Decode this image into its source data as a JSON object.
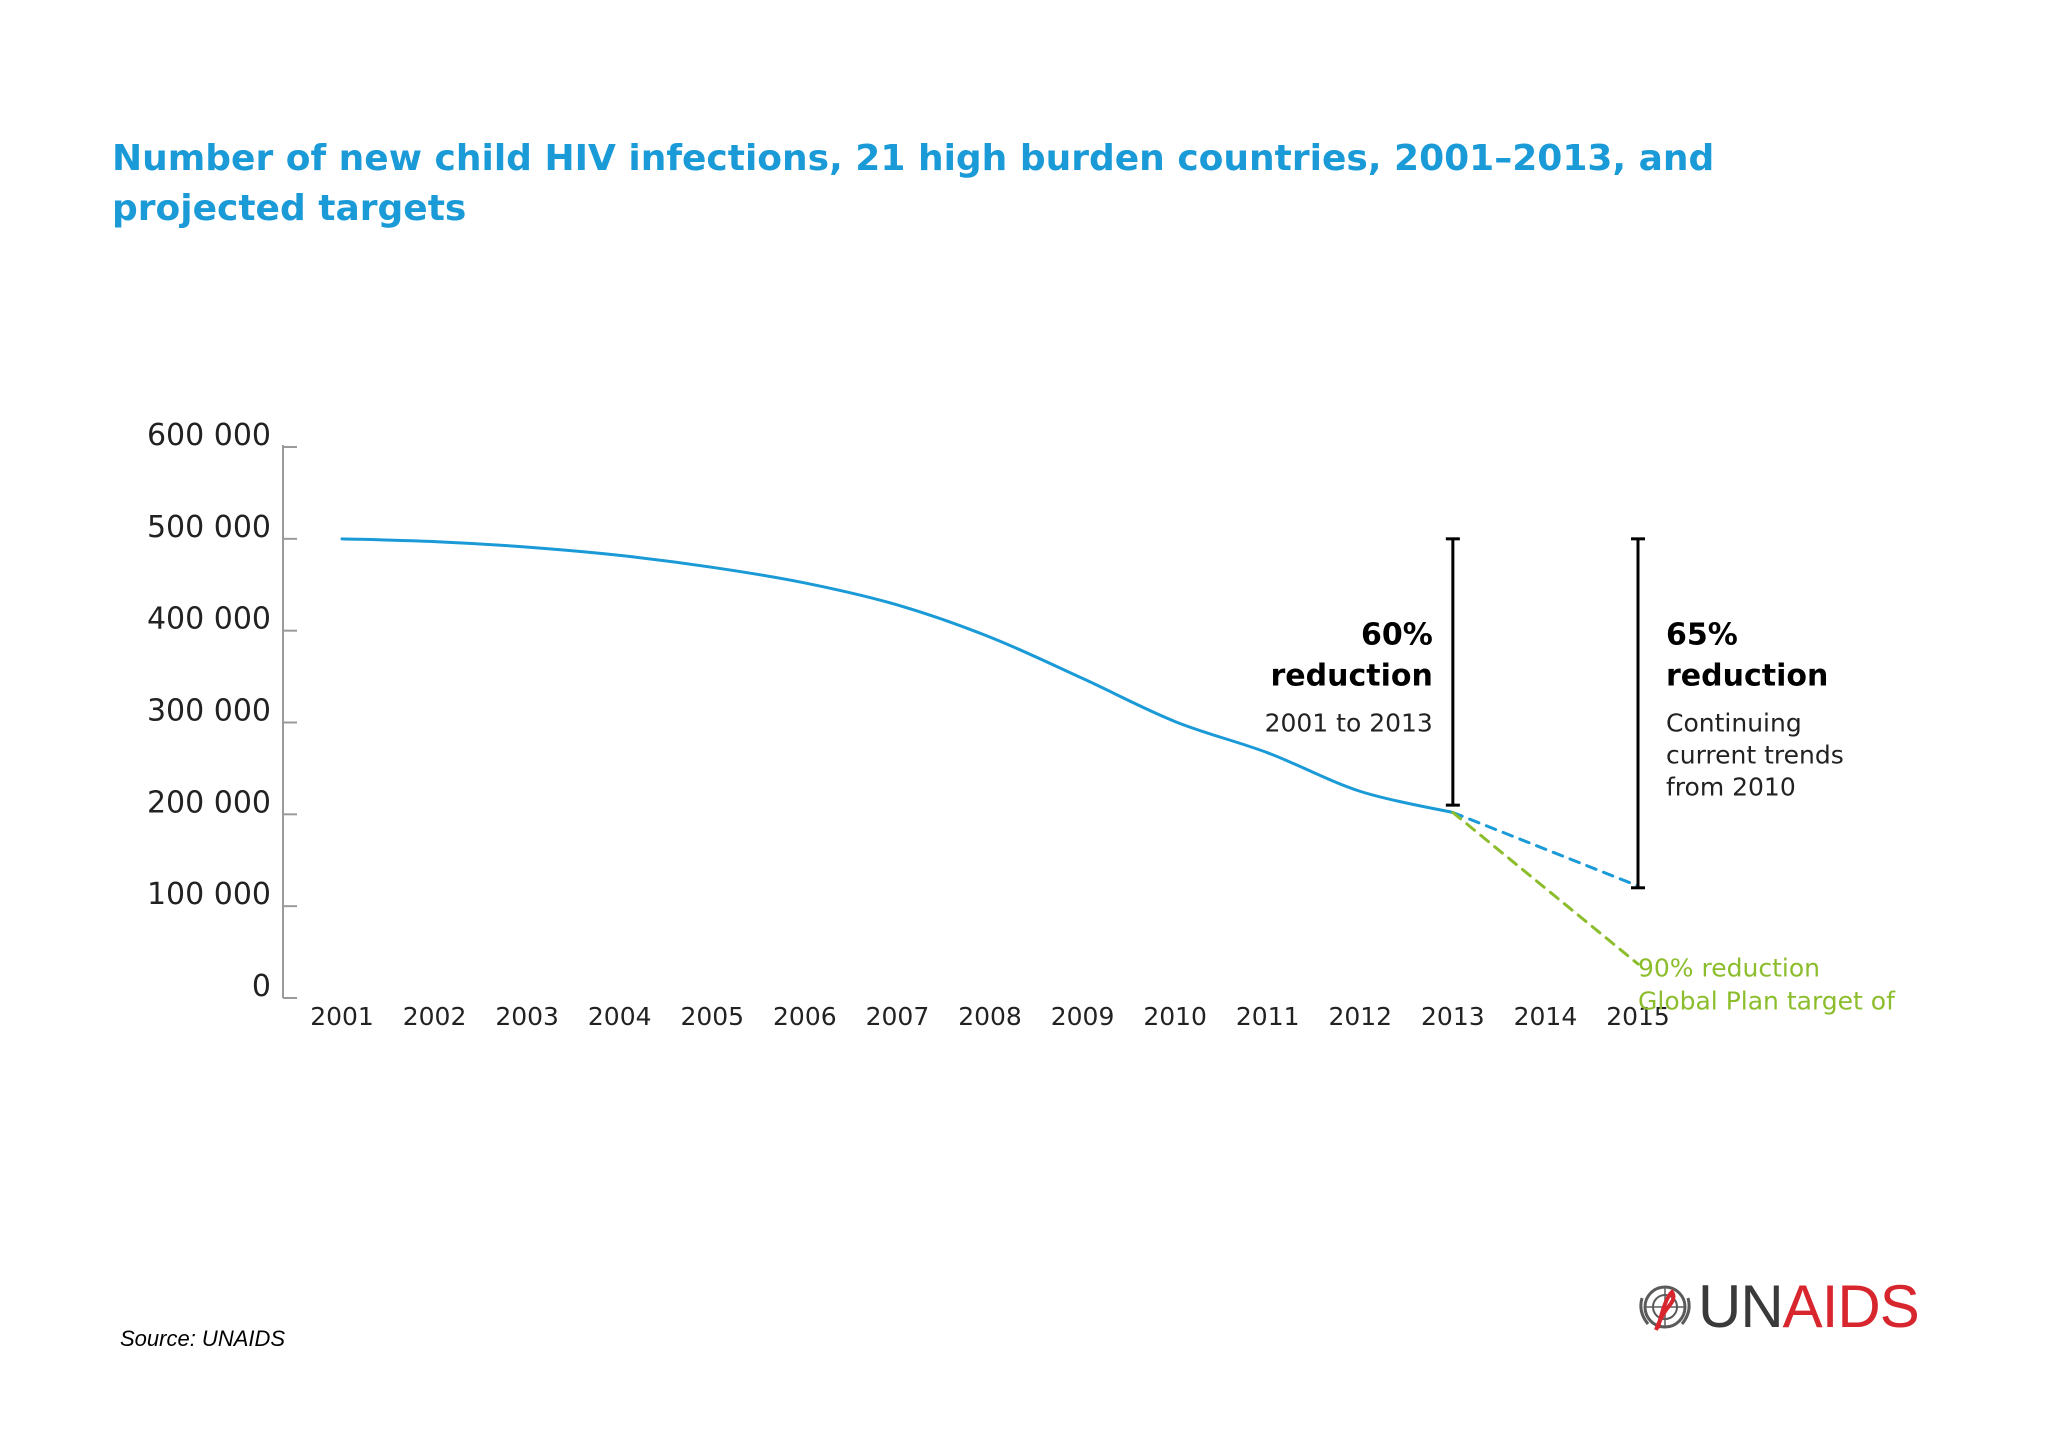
{
  "title": "Number of new child HIV infections, 21 high burden countries, 2001–2013, and projected targets",
  "source": "Source: UNAIDS",
  "logo": {
    "part1": "UN",
    "part2": "AIDS",
    "colors": {
      "un": "#3a3a3a",
      "aids": "#d8262f"
    }
  },
  "chart_data": {
    "type": "line",
    "title": "Number of new child HIV infections, 21 high burden countries, 2001–2013, and projected targets",
    "xlabel": "",
    "ylabel": "",
    "x_ticks": [
      "2001",
      "2002",
      "2003",
      "2004",
      "2005",
      "2006",
      "2007",
      "2008",
      "2009",
      "2010",
      "2011",
      "2012",
      "2013",
      "2014",
      "2015"
    ],
    "y_ticks": [
      "0",
      "100 000",
      "200 000",
      "300 000",
      "400 000",
      "500 000",
      "600 000"
    ],
    "ylim": [
      0,
      600000
    ],
    "xlim": [
      2001,
      2015
    ],
    "grid": false,
    "series": [
      {
        "x": [
          2001,
          2002,
          2003,
          2004,
          2005,
          2006,
          2007,
          2008,
          2009,
          2010,
          2011,
          2012,
          2013
        ],
        "y": [
          500000,
          497000,
          491000,
          482000,
          469000,
          452000,
          428000,
          393000,
          348000,
          301000,
          267000,
          225000,
          202000
        ],
        "color": "#1a9ad6",
        "style": "solid"
      },
      {
        "x": [
          2013,
          2015
        ],
        "y": [
          202000,
          122000
        ],
        "color": "#1a9ad6",
        "style": "dashed"
      },
      {
        "x": [
          2013,
          2015
        ],
        "y": [
          202000,
          37000
        ],
        "color": "#8cbd2c",
        "style": "dashed"
      }
    ],
    "annotations": [
      {
        "x": 2013,
        "y_range": [
          210000,
          500000
        ],
        "bold": "60%\nreduction",
        "text": "2001 to 2013",
        "side": "left",
        "color": "#000000"
      },
      {
        "x": 2015,
        "y_range": [
          120000,
          500000
        ],
        "bold": "65%\nreduction",
        "text": "Continuing\ncurrent trends\nfrom 2010",
        "side": "right",
        "color": "#000000"
      },
      {
        "x": 2015,
        "y": 42000,
        "text": "90% reduction\nGlobal Plan target of",
        "color": "#8cbd2c"
      }
    ]
  }
}
